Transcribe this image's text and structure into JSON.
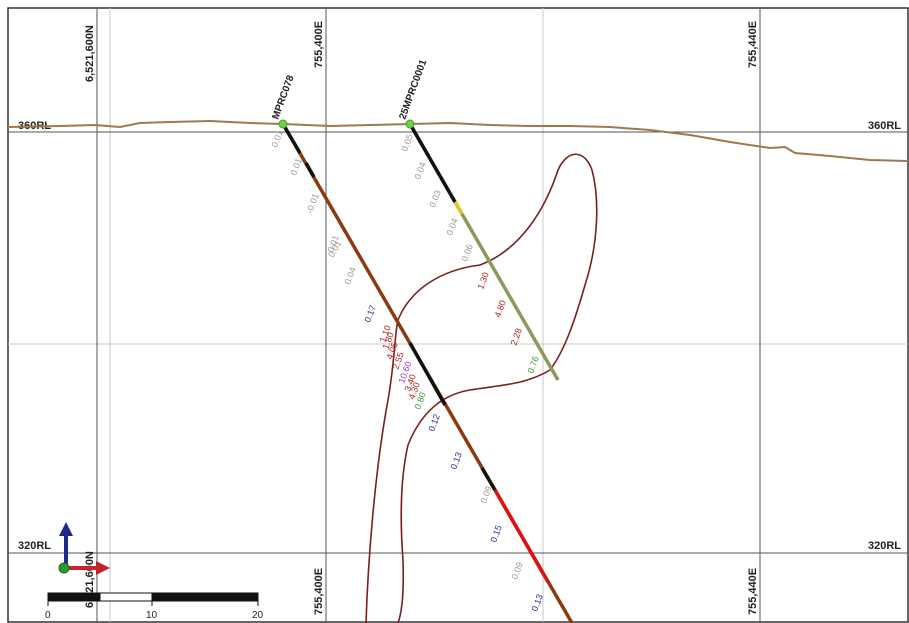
{
  "rl_labels": {
    "top": "360RL",
    "bottom": "320RL"
  },
  "coords": {
    "northing": "6,521,600N",
    "easting_left": "755,400E",
    "easting_right": "755,440E"
  },
  "holes": [
    {
      "name": "MPRC078"
    },
    {
      "name": "25MPRC0001"
    }
  ],
  "assays": {
    "mprc078": [
      "0.01",
      "0.01",
      "-0.01",
      "0.01",
      "0.01",
      "0.04",
      "0.17",
      "1.10",
      "1.80",
      "4.05",
      "2.55",
      "10.60",
      "3.40",
      "4.30",
      "0.80",
      "0.12",
      "0.13",
      "0.09",
      "0.15",
      "0.09",
      "0.13"
    ],
    "mprc0001": [
      "0.05",
      "0.04",
      "0.03",
      "0.04",
      "0.06",
      "1.30",
      "4.80",
      "2.28",
      "0.76"
    ]
  },
  "scale_bar": {
    "ticks": [
      "0",
      "10",
      "20"
    ]
  },
  "colors": {
    "topography": "#a07850",
    "ore_outline": "#7a1f1f",
    "hole_brown": "#8b3a0f",
    "hole_olive": "#8a9a5b",
    "hole_red": "#e01010",
    "collar": "#6fcf4a",
    "grade_low": "#2b2b9a",
    "grade_mid": "#b22222",
    "grade_high": "#b030c0",
    "grade_green": "#3a9a3a",
    "grade_trace": "#999999"
  },
  "icons": [
    "axis-triad-icon"
  ]
}
